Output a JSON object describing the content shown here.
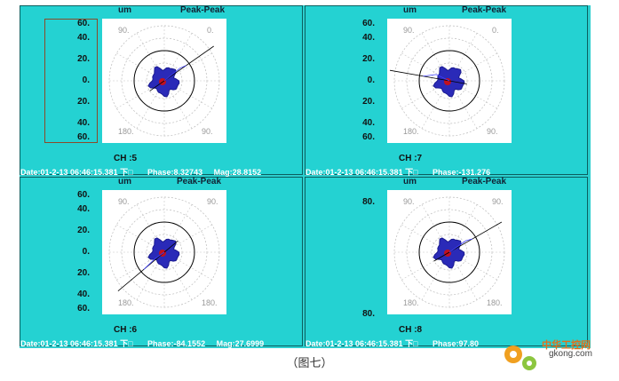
{
  "panels": [
    {
      "unit": "um",
      "mode": "Peak-Peak",
      "ticks": [
        "60.",
        "40.",
        "20.",
        "0.",
        "20.",
        "40.",
        "60."
      ],
      "channel": "CH :5",
      "date": "Date:01-2-13 06:46:15.381 下□",
      "phase": "Phase:8.32743",
      "mag": "Mag:28.8152",
      "angles": [
        "90.",
        "0.",
        "180.",
        "90."
      ],
      "line_angle_deg": 35
    },
    {
      "unit": "um",
      "mode": "Peak-Peak",
      "ticks": [
        "60.",
        "40.",
        "20.",
        "0.",
        "20.",
        "40.",
        "60."
      ],
      "channel": "CH :7",
      "date": "Date:01-2-13 06:46:15.381 下□",
      "phase": "Phase:-131.276",
      "mag": "",
      "angles": [
        "90.",
        "0.",
        "180.",
        "90."
      ],
      "line_angle_deg": 170
    },
    {
      "unit": "um",
      "mode": "Peak-Peak",
      "ticks": [
        "60.",
        "40.",
        "20.",
        "0.",
        "20.",
        "40.",
        "60."
      ],
      "channel": "CH :6",
      "date": "Date:01-2-13 06:46:15.381 下□",
      "phase": "Phase:-84.1552",
      "mag": "Mag:27.6999",
      "angles": [
        "90.",
        "90.",
        "180.",
        "180."
      ],
      "line_angle_deg": 220
    },
    {
      "unit": "um",
      "mode": "Peak-Peak",
      "ticks": [
        "80.",
        "",
        "",
        "",
        "",
        "",
        "80."
      ],
      "channel": "CH :8",
      "date": "Date:01-2-13 06:46:15.381 下□",
      "phase": "Phase:97.80",
      "mag": "",
      "angles": [
        "90.",
        "90.",
        "180.",
        "180."
      ],
      "line_angle_deg": 30
    }
  ],
  "caption": "（图七）",
  "watermark": {
    "line1": "中华工控网",
    "line2": "gkong.com"
  },
  "colors": {
    "background": "#24d2d2",
    "orbit": "#1a1aa8",
    "orbit_core": "#c01020"
  }
}
